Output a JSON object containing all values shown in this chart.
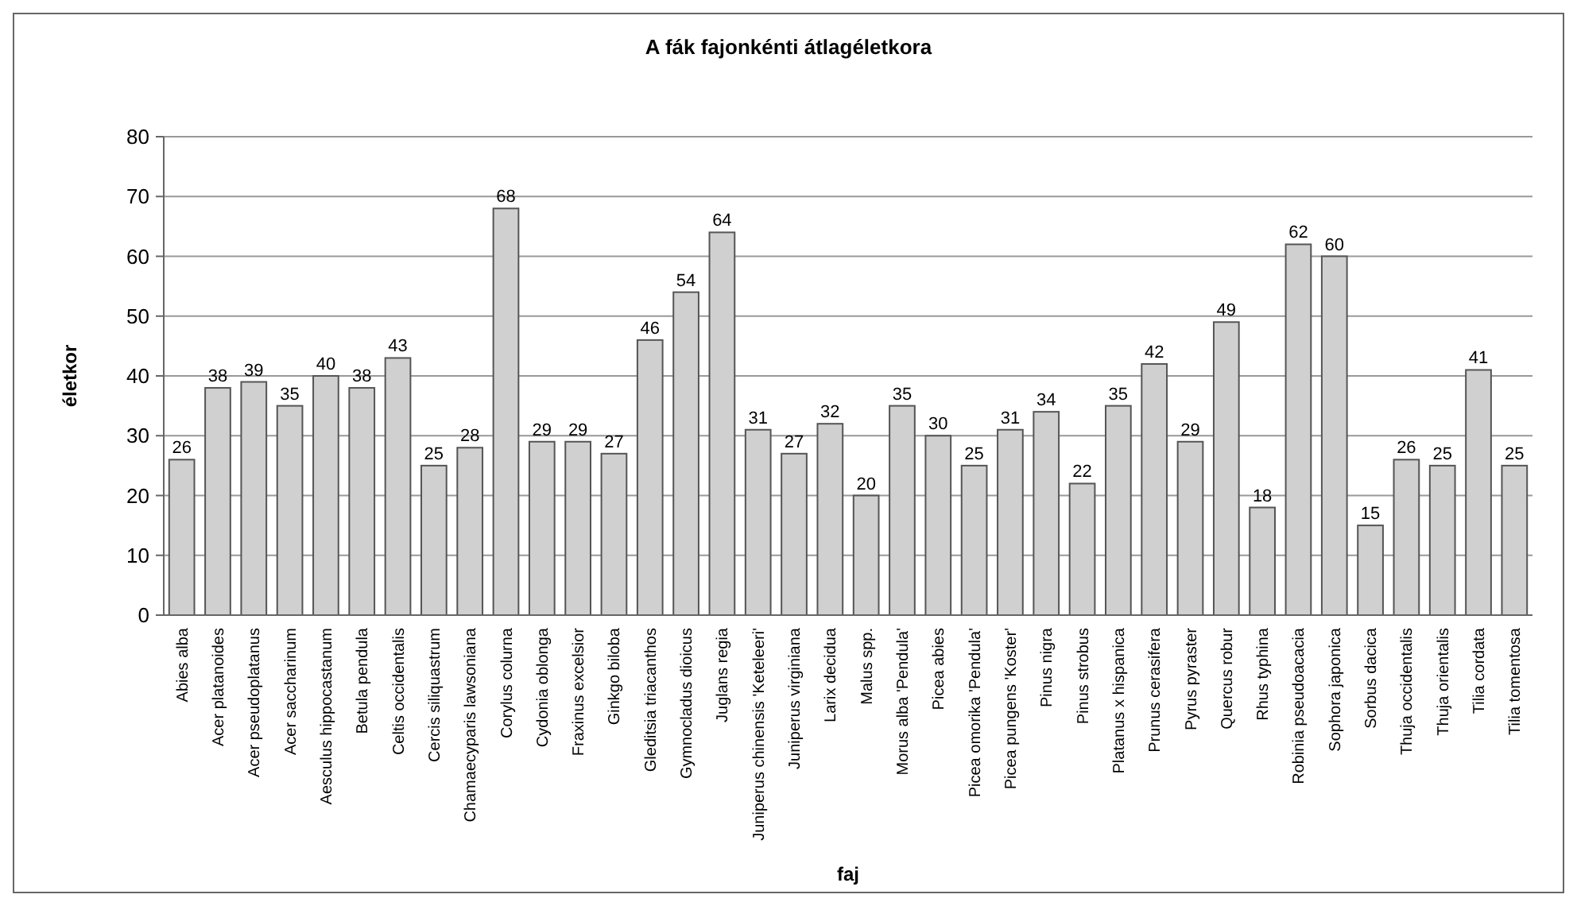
{
  "chart_data": {
    "type": "bar",
    "title": "A fák fajonkénti átlagéletkora",
    "xlabel": "faj",
    "ylabel": "életkor",
    "categories": [
      "Abies alba",
      "Acer platanoides",
      "Acer pseudoplatanus",
      "Acer saccharinum",
      "Aesculus hippocastanum",
      "Betula pendula",
      "Celtis occidentalis",
      "Cercis siliquastrum",
      "Chamaecyparis lawsoniana",
      "Corylus colurna",
      "Cydonia oblonga",
      "Fraxinus excelsior",
      "Ginkgo biloba",
      "Gleditsia triacanthos",
      "Gymnocladus dioicus",
      "Juglans regia",
      "Juniperus chinensis 'Keteleeri'",
      "Juniperus virginiana",
      "Larix decidua",
      "Malus spp.",
      "Morus alba 'Pendula'",
      "Picea abies",
      "Picea omorika 'Pendula'",
      "Picea pungens 'Koster'",
      "Pinus nigra",
      "Pinus strobus",
      "Platanus x hispanica",
      "Prunus cerasifera",
      "Pyrus pyraster",
      "Quercus robur",
      "Rhus typhina",
      "Robinia pseudoacacia",
      "Sophora japonica",
      "Sorbus dacica",
      "Thuja occidentalis",
      "Thuja orientalis",
      "Tilia cordata",
      "Tilia tomentosa"
    ],
    "values": [
      26,
      38,
      39,
      35,
      40,
      38,
      43,
      25,
      28,
      68,
      29,
      29,
      27,
      46,
      54,
      64,
      31,
      27,
      32,
      20,
      35,
      30,
      25,
      31,
      34,
      22,
      35,
      42,
      29,
      49,
      18,
      62,
      60,
      15,
      26,
      25,
      41,
      25
    ],
    "color": "#d0d0d0",
    "data_labels": true,
    "ylim": [
      0,
      80
    ],
    "yticks": [
      0,
      10,
      20,
      30,
      40,
      50,
      60,
      70,
      80
    ],
    "grid": "y"
  }
}
